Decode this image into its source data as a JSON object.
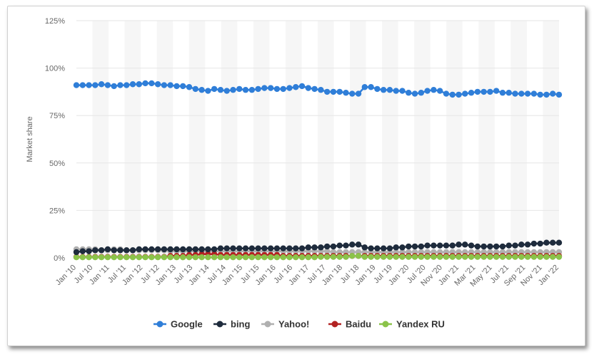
{
  "chart_data": {
    "type": "line",
    "ylabel": "Market share",
    "ylim": [
      0,
      125
    ],
    "yticks": [
      "0%",
      "25%",
      "50%",
      "75%",
      "100%",
      "125%"
    ],
    "yticks_values": [
      0,
      25,
      50,
      75,
      100,
      125
    ],
    "grid": "vertical-bands",
    "legend_position": "bottom",
    "xtick_labels": [
      "Jan '10",
      "Jul '10",
      "Jan '11",
      "Jul '11",
      "Jan '12",
      "Jul '12",
      "Jan '13",
      "Jul '13",
      "Jan '14",
      "Jul '14",
      "Jan '15",
      "Jul '15",
      "Jan '16",
      "Jul '16",
      "Jan '17",
      "Jul '17",
      "Jan '18",
      "Jul '18",
      "Jan '19",
      "Jul '19",
      "Jan '20",
      "Jul '20",
      "Nov '20",
      "Jan '21",
      "Mar '21",
      "May '21",
      "Jul '21",
      "Sep '21",
      "Nov '21",
      "Jan '22"
    ],
    "series": [
      {
        "name": "Google",
        "color": "#2f7ed8",
        "values": [
          91,
          91,
          91,
          91,
          91.5,
          91,
          90.5,
          91,
          91,
          91.5,
          91.5,
          92,
          92,
          91.5,
          91,
          91,
          90.5,
          90.5,
          90,
          89,
          88.5,
          88,
          89,
          88.5,
          88,
          88.5,
          89,
          88.5,
          88.5,
          89,
          89.5,
          89.5,
          89,
          89,
          89.5,
          90,
          90.5,
          89.5,
          89,
          88.5,
          87.5,
          87.5,
          87.5,
          87,
          86.5,
          86.5,
          90,
          90,
          89,
          88.5,
          88.5,
          88,
          88,
          87,
          86.5,
          87,
          88,
          88.5,
          88,
          86.5,
          86,
          86,
          86.5,
          87,
          87.5,
          87.5,
          87.5,
          88,
          87,
          87,
          86.5,
          86.5,
          86.5,
          86.5,
          86,
          86,
          86.5,
          86
        ]
      },
      {
        "name": "bing",
        "color": "#1e2b3c",
        "values": [
          3,
          3.5,
          3.5,
          4,
          4,
          4.5,
          4,
          4,
          4,
          4,
          4.5,
          4.5,
          4.5,
          4.5,
          4.5,
          4.5,
          4.5,
          4.5,
          4.5,
          4.5,
          4.5,
          4.5,
          4.5,
          5,
          5,
          5,
          5,
          5,
          5,
          5,
          5,
          5,
          5,
          5,
          5,
          5,
          5,
          5.5,
          5.5,
          5.5,
          6,
          6,
          6.5,
          6.5,
          7,
          7,
          5.5,
          5,
          5,
          5,
          5,
          5.5,
          5.5,
          6,
          6,
          6,
          6.5,
          6.5,
          6.5,
          6.5,
          6.5,
          7,
          7,
          6.5,
          6,
          6,
          6,
          6,
          6,
          6.5,
          6.5,
          7,
          7,
          7.5,
          7.5,
          8,
          8,
          8
        ]
      },
      {
        "name": "Yahoo!",
        "color": "#b0b0b0",
        "values": [
          4.5,
          4.5,
          4.5,
          4.5,
          4,
          4,
          4.5,
          4.5,
          4,
          4,
          4,
          4,
          4,
          4,
          4,
          3.5,
          3.5,
          3.5,
          3.5,
          3.5,
          3.5,
          3.5,
          3.5,
          3.5,
          3.5,
          3.5,
          3.5,
          3.5,
          3.5,
          3.5,
          3.5,
          3.5,
          3.5,
          3.5,
          3.5,
          3.5,
          3.5,
          3.5,
          3.5,
          3.5,
          3.5,
          3,
          3,
          3,
          3,
          3,
          3,
          3,
          3,
          3,
          3,
          3,
          3,
          3,
          3,
          3,
          3,
          3,
          3,
          3,
          3,
          3,
          3,
          3,
          3,
          3,
          3,
          3,
          3,
          3,
          3,
          3,
          3,
          3,
          3,
          3,
          3,
          3
        ]
      },
      {
        "name": "Baidu",
        "color": "#b22222",
        "values": [
          0.5,
          0.5,
          0.5,
          0.5,
          0.5,
          0.5,
          0.5,
          0.5,
          0.5,
          0.5,
          0.5,
          0.5,
          0.5,
          0.5,
          0.5,
          1,
          1,
          1,
          1.5,
          1.5,
          2,
          2,
          2,
          1.5,
          1.5,
          1.5,
          1.5,
          1.5,
          1.5,
          1.5,
          1.5,
          1.5,
          1.5,
          1,
          1,
          1,
          1,
          1,
          1,
          1,
          1,
          1,
          1,
          1,
          1,
          1,
          1,
          1,
          1,
          1,
          1,
          1,
          1,
          1,
          1,
          1,
          1,
          1,
          1,
          1,
          1,
          1,
          1,
          1,
          1,
          1,
          1,
          1,
          1,
          1,
          1,
          1,
          1,
          1,
          1,
          1,
          1,
          1
        ]
      },
      {
        "name": "Yandex RU",
        "color": "#8bc34a",
        "values": [
          0.3,
          0.3,
          0.3,
          0.3,
          0.3,
          0.3,
          0.3,
          0.3,
          0.3,
          0.3,
          0.3,
          0.3,
          0.3,
          0.3,
          0.3,
          0.3,
          0.3,
          0.3,
          0.3,
          0.3,
          0.3,
          0.3,
          0.3,
          0.3,
          0.3,
          0.3,
          0.3,
          0.3,
          0.3,
          0.3,
          0.3,
          0.3,
          0.3,
          0.3,
          0.3,
          0.3,
          0.3,
          0.3,
          0.3,
          0.5,
          0.5,
          0.5,
          0.5,
          0.5,
          1,
          1,
          0.5,
          0.5,
          0.5,
          0.5,
          0.5,
          0.5,
          0.5,
          0.5,
          0.5,
          0.5,
          0.5,
          0.5,
          0.5,
          0.5,
          0.5,
          0.5,
          0.5,
          0.5,
          0.5,
          0.5,
          0.5,
          0.5,
          0.5,
          0.5,
          0.5,
          0.5,
          0.5,
          0.5,
          0.5,
          0.5,
          0.5,
          0.5
        ]
      }
    ]
  }
}
